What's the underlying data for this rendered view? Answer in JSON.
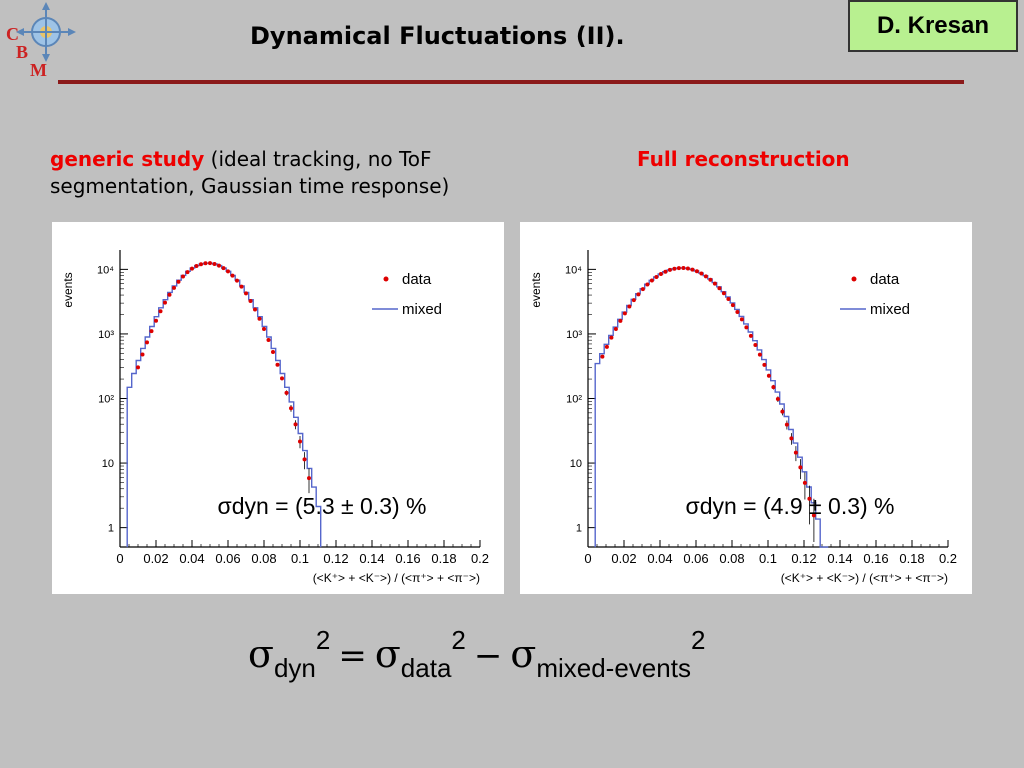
{
  "slide": {
    "title": "Dynamical Fluctuations (II).",
    "author": "D. Kresan",
    "logo_letters": [
      "C",
      "B",
      "M"
    ]
  },
  "captions": {
    "left_highlight": "generic study",
    "left_rest": " (ideal tracking, no ToF segmentation, Gaussian time response)",
    "right": "Full reconstruction"
  },
  "formula": {
    "sigma": "σ",
    "sub1": "dyn",
    "sub2": "data",
    "sub3": "mixed-events",
    "sup": "2",
    "eq": "=",
    "minus": "−"
  },
  "colors": {
    "background": "#c0c0c0",
    "title_rule": "#8b1a1a",
    "author_box": "#b8f090",
    "highlight_text": "#ee0000",
    "data_marker": "#dd0000",
    "mixed_line": "#5566cc"
  },
  "chart_data": [
    {
      "type": "scatter",
      "ylabel": "events",
      "xlabel": "(<K⁺> + <K⁻>) / (<π⁺> + <π⁻>)",
      "xlim": [
        0,
        0.2
      ],
      "ylim_log10": [
        -0.3,
        4.3
      ],
      "log_y": true,
      "x_ticks": [
        "0",
        "0.02",
        "0.04",
        "0.06",
        "0.08",
        "0.1",
        "0.12",
        "0.14",
        "0.16",
        "0.18",
        "0.2"
      ],
      "y_ticks": [
        {
          "label": "1",
          "value": 1
        },
        {
          "label": "10",
          "value": 10
        },
        {
          "label": "10²",
          "value": 100
        },
        {
          "label": "10³",
          "value": 1000
        },
        {
          "label": "10⁴",
          "value": 10000
        }
      ],
      "legend": [
        "data",
        "mixed"
      ],
      "legend_position": "top-right",
      "annotation": "σdyn = (5.3 ± 0.3) %",
      "series": [
        {
          "name": "data",
          "curve": {
            "mu": 0.049,
            "sigma": 0.0143,
            "peak": 12500,
            "x_start": 0.01,
            "x_end": 0.107,
            "step": 0.0025
          }
        },
        {
          "name": "mixed",
          "curve": {
            "mu": 0.049,
            "sigma": 0.0147,
            "peak": 12500,
            "x_start": 0.004,
            "x_end": 0.109,
            "step": 0.0025
          }
        }
      ]
    },
    {
      "type": "scatter",
      "ylabel": "events",
      "xlabel": "(<K⁺> + <K⁻>) / (<π⁺> + <π⁻>)",
      "xlim": [
        0,
        0.2
      ],
      "ylim_log10": [
        -0.3,
        4.3
      ],
      "log_y": true,
      "x_ticks": [
        "0",
        "0.02",
        "0.04",
        "0.06",
        "0.08",
        "0.1",
        "0.12",
        "0.14",
        "0.16",
        "0.18",
        "0.2"
      ],
      "y_ticks": [
        {
          "label": "1",
          "value": 1
        },
        {
          "label": "10",
          "value": 10
        },
        {
          "label": "10²",
          "value": 100
        },
        {
          "label": "10³",
          "value": 1000
        },
        {
          "label": "10⁴",
          "value": 10000
        }
      ],
      "legend": [
        "data",
        "mixed"
      ],
      "legend_position": "top-right",
      "annotation": "σdyn = (4.9 ± 0.3) %",
      "series": [
        {
          "name": "data",
          "curve": {
            "mu": 0.052,
            "sigma": 0.0175,
            "peak": 10500,
            "x_start": 0.008,
            "x_end": 0.128,
            "step": 0.0025
          }
        },
        {
          "name": "mixed",
          "curve": {
            "mu": 0.052,
            "sigma": 0.0179,
            "peak": 10500,
            "x_start": 0.004,
            "x_end": 0.131,
            "step": 0.0025
          }
        }
      ]
    }
  ]
}
